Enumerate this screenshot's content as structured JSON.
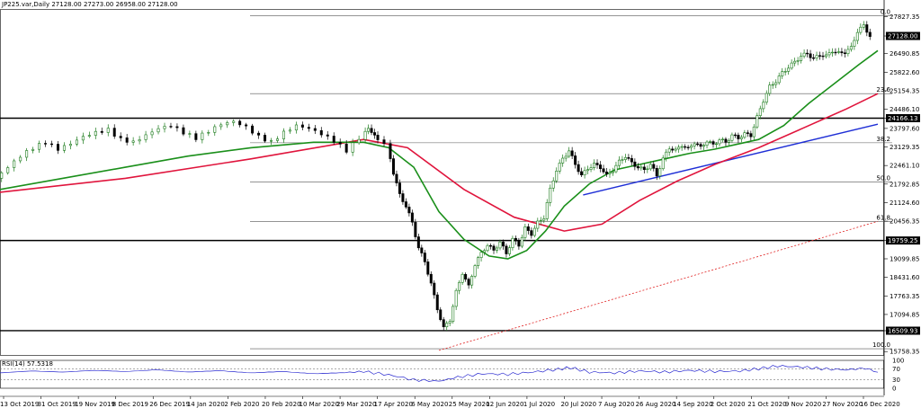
{
  "header": {
    "text": "JP225.var,Daily  27128.00 27273.00 26958.00 27128.00"
  },
  "chart_data": {
    "type": "candlestick",
    "symbol": "JP225.var",
    "timeframe": "Daily",
    "ohlc_last": {
      "open": 27128.0,
      "high": 27273.0,
      "low": 26958.0,
      "close": 27128.0
    },
    "price_axis_ticks": [
      27827.35,
      27128.0,
      26490.85,
      25822.6,
      25154.35,
      24486.1,
      24166.13,
      23797.6,
      23129.35,
      22461.1,
      21792.85,
      21124.6,
      20456.35,
      19759.25,
      19099.85,
      18431.6,
      17763.35,
      17094.85,
      16509.93,
      15758.35
    ],
    "price_axis_labels": [
      "27827.35",
      "27128.00",
      "26490.85",
      "25822.60",
      "25154.35",
      "24486.10",
      "24166.13",
      "23797.60",
      "23129.35",
      "22461.10",
      "21792.85",
      "21124.60",
      "20456.35",
      "19759.25",
      "19099.85",
      "18431.60",
      "17763.35",
      "17094.85",
      "16509.93",
      "15758.35"
    ],
    "highlighted_prices": [
      "27128.00",
      "24166.13",
      "19759.25",
      "16509.93"
    ],
    "ylim": [
      15700,
      28100
    ],
    "date_labels": [
      "13 Oct 2019",
      "31 Oct 2019",
      "19 Nov 2019",
      "8 Dec 2019",
      "26 Dec 2019",
      "14 Jan 2020",
      "2 Feb 2020",
      "20 Feb 2020",
      "10 Mar 2020",
      "29 Mar 2020",
      "17 Apr 2020",
      "6 May 2020",
      "25 May 2020",
      "12 Jun 2020",
      "1 Jul 2020",
      "20 Jul 2020",
      "7 Aug 2020",
      "26 Aug 2020",
      "14 Sep 2020",
      "2 Oct 2020",
      "21 Oct 2020",
      "9 Nov 2020",
      "27 Nov 2020",
      "16 Dec 2020"
    ],
    "horizontal_levels": [
      {
        "price": 24166.13,
        "label": "24166.13"
      },
      {
        "price": 19759.25,
        "label": "19759.25"
      },
      {
        "price": 16509.93,
        "label": "16509.93"
      }
    ],
    "fibonacci": {
      "levels": [
        {
          "ratio": "0.0",
          "price": 27850
        },
        {
          "ratio": "23.6",
          "price": 25050
        },
        {
          "ratio": "38.2",
          "price": 23280
        },
        {
          "ratio": "50.0",
          "price": 21870
        },
        {
          "ratio": "61.8",
          "price": 20450
        },
        {
          "ratio": "100.0",
          "price": 15860
        }
      ]
    },
    "close_path": [
      [
        0,
        22000
      ],
      [
        4,
        22400
      ],
      [
        8,
        22800
      ],
      [
        12,
        23100
      ],
      [
        16,
        23300
      ],
      [
        20,
        23050
      ],
      [
        24,
        23250
      ],
      [
        28,
        23500
      ],
      [
        32,
        23650
      ],
      [
        36,
        23750
      ],
      [
        40,
        23400
      ],
      [
        44,
        23300
      ],
      [
        48,
        23550
      ],
      [
        52,
        23800
      ],
      [
        56,
        23900
      ],
      [
        60,
        23650
      ],
      [
        64,
        23450
      ],
      [
        68,
        23700
      ],
      [
        72,
        23950
      ],
      [
        76,
        24050
      ],
      [
        80,
        23850
      ],
      [
        84,
        23500
      ],
      [
        88,
        23300
      ],
      [
        92,
        23650
      ],
      [
        96,
        23900
      ],
      [
        100,
        23800
      ],
      [
        104,
        23600
      ],
      [
        108,
        23350
      ],
      [
        112,
        23000
      ],
      [
        116,
        23450
      ],
      [
        118,
        23850
      ],
      [
        120,
        23500
      ],
      [
        124,
        23250
      ],
      [
        126,
        22200
      ],
      [
        128,
        21400
      ],
      [
        130,
        21000
      ],
      [
        132,
        20400
      ],
      [
        134,
        19500
      ],
      [
        136,
        19000
      ],
      [
        138,
        18200
      ],
      [
        140,
        17300
      ],
      [
        142,
        16600
      ],
      [
        144,
        16900
      ],
      [
        146,
        17900
      ],
      [
        148,
        18600
      ],
      [
        150,
        18100
      ],
      [
        152,
        18900
      ],
      [
        154,
        19300
      ],
      [
        156,
        19600
      ],
      [
        158,
        19400
      ],
      [
        160,
        19700
      ],
      [
        162,
        19300
      ],
      [
        164,
        19800
      ],
      [
        166,
        19600
      ],
      [
        168,
        20200
      ],
      [
        170,
        20000
      ],
      [
        172,
        20400
      ],
      [
        174,
        20600
      ],
      [
        176,
        21600
      ],
      [
        178,
        22300
      ],
      [
        180,
        22700
      ],
      [
        182,
        23000
      ],
      [
        184,
        22500
      ],
      [
        186,
        22100
      ],
      [
        188,
        22350
      ],
      [
        190,
        22500
      ],
      [
        192,
        22400
      ],
      [
        194,
        22100
      ],
      [
        196,
        22300
      ],
      [
        198,
        22600
      ],
      [
        200,
        22800
      ],
      [
        202,
        22550
      ],
      [
        204,
        22400
      ],
      [
        206,
        22300
      ],
      [
        208,
        22500
      ],
      [
        210,
        22100
      ],
      [
        212,
        22700
      ],
      [
        214,
        23100
      ],
      [
        216,
        23000
      ],
      [
        218,
        23200
      ],
      [
        220,
        23050
      ],
      [
        222,
        23300
      ],
      [
        224,
        23100
      ],
      [
        226,
        23350
      ],
      [
        228,
        23200
      ],
      [
        230,
        23400
      ],
      [
        232,
        23300
      ],
      [
        234,
        23550
      ],
      [
        236,
        23450
      ],
      [
        238,
        23600
      ],
      [
        240,
        23550
      ],
      [
        242,
        24200
      ],
      [
        244,
        24800
      ],
      [
        246,
        25300
      ],
      [
        248,
        25500
      ],
      [
        250,
        25800
      ],
      [
        252,
        26000
      ],
      [
        254,
        26200
      ],
      [
        256,
        26400
      ],
      [
        258,
        26500
      ],
      [
        260,
        26300
      ],
      [
        262,
        26450
      ],
      [
        264,
        26400
      ],
      [
        266,
        26600
      ],
      [
        268,
        26500
      ],
      [
        270,
        26550
      ],
      [
        272,
        26700
      ],
      [
        274,
        27300
      ],
      [
        276,
        27500
      ],
      [
        278,
        27128
      ]
    ],
    "ma_green_path": [
      [
        0,
        21600
      ],
      [
        20,
        22000
      ],
      [
        40,
        22400
      ],
      [
        60,
        22800
      ],
      [
        80,
        23100
      ],
      [
        100,
        23300
      ],
      [
        116,
        23300
      ],
      [
        124,
        23100
      ],
      [
        132,
        22400
      ],
      [
        140,
        20800
      ],
      [
        148,
        19800
      ],
      [
        156,
        19200
      ],
      [
        162,
        19100
      ],
      [
        168,
        19400
      ],
      [
        174,
        20100
      ],
      [
        180,
        21000
      ],
      [
        188,
        21800
      ],
      [
        196,
        22300
      ],
      [
        204,
        22500
      ],
      [
        212,
        22700
      ],
      [
        220,
        22900
      ],
      [
        228,
        23050
      ],
      [
        236,
        23250
      ],
      [
        242,
        23400
      ],
      [
        250,
        23900
      ],
      [
        258,
        24700
      ],
      [
        266,
        25400
      ],
      [
        274,
        26100
      ],
      [
        280,
        26600
      ]
    ],
    "ma_red_path": [
      [
        0,
        21500
      ],
      [
        40,
        22000
      ],
      [
        80,
        22700
      ],
      [
        116,
        23400
      ],
      [
        130,
        23100
      ],
      [
        148,
        21600
      ],
      [
        164,
        20600
      ],
      [
        180,
        20100
      ],
      [
        192,
        20350
      ],
      [
        204,
        21200
      ],
      [
        216,
        21900
      ],
      [
        228,
        22500
      ],
      [
        242,
        23100
      ],
      [
        256,
        23800
      ],
      [
        270,
        24500
      ],
      [
        280,
        25050
      ]
    ],
    "trendline_blue": {
      "from": [
        186,
        21400
      ],
      "to": [
        280,
        23950
      ]
    },
    "trendline_red_dashed": {
      "from": [
        140,
        15800
      ],
      "to": [
        280,
        20450
      ]
    },
    "rsi": {
      "label": "RSI(14) 57.5318",
      "levels": [
        100,
        70,
        30,
        0
      ],
      "level_labels": [
        "100",
        "70",
        "30",
        "0"
      ],
      "values": [
        [
          0,
          55
        ],
        [
          10,
          62
        ],
        [
          20,
          58
        ],
        [
          30,
          64
        ],
        [
          40,
          60
        ],
        [
          50,
          66
        ],
        [
          60,
          58
        ],
        [
          70,
          63
        ],
        [
          80,
          55
        ],
        [
          90,
          60
        ],
        [
          100,
          52
        ],
        [
          110,
          56
        ],
        [
          116,
          60
        ],
        [
          124,
          48
        ],
        [
          132,
          30
        ],
        [
          140,
          25
        ],
        [
          146,
          40
        ],
        [
          154,
          52
        ],
        [
          162,
          50
        ],
        [
          170,
          58
        ],
        [
          178,
          68
        ],
        [
          182,
          74
        ],
        [
          188,
          58
        ],
        [
          196,
          55
        ],
        [
          204,
          62
        ],
        [
          212,
          58
        ],
        [
          220,
          64
        ],
        [
          228,
          60
        ],
        [
          236,
          62
        ],
        [
          242,
          70
        ],
        [
          248,
          80
        ],
        [
          256,
          76
        ],
        [
          262,
          70
        ],
        [
          270,
          66
        ],
        [
          276,
          72
        ],
        [
          280,
          57.5
        ]
      ]
    },
    "colors": {
      "candle_up": "#1a7a1a",
      "candle_down": "#000000",
      "ma_green": "#1a8f1a",
      "ma_red": "#e0143c",
      "trend_blue": "#1f2fd6",
      "trend_red": "#e02020",
      "rsi_line": "#2a2ad0"
    }
  }
}
